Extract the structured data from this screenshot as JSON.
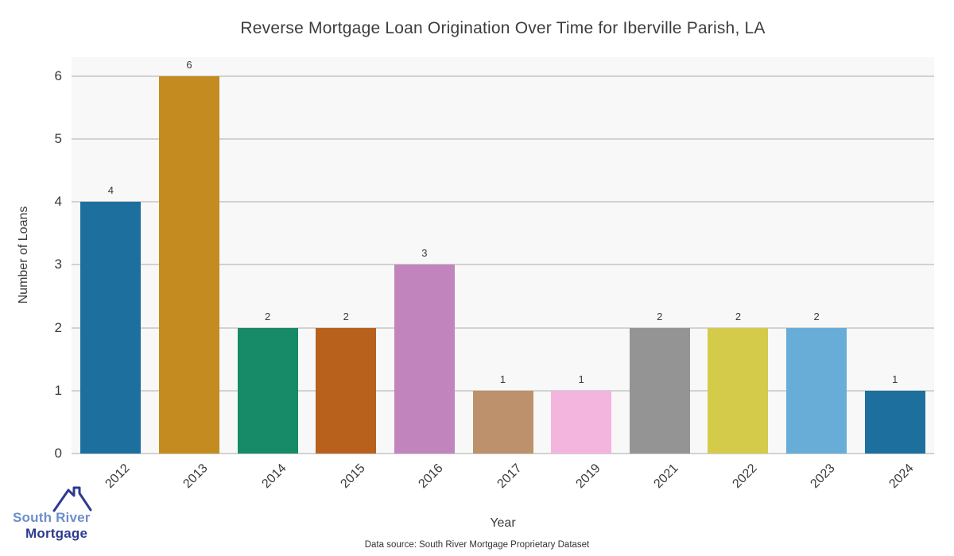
{
  "title": "Reverse Mortgage Loan Origination Over Time for Iberville Parish, LA",
  "chart_data": {
    "type": "bar",
    "categories": [
      "2012",
      "2013",
      "2014",
      "2015",
      "2016",
      "2017",
      "2019",
      "2021",
      "2022",
      "2023",
      "2024"
    ],
    "values": [
      4,
      6,
      2,
      2,
      3,
      1,
      1,
      2,
      2,
      2,
      1
    ],
    "bar_colors": [
      "#1d6f9e",
      "#c38b20",
      "#178a67",
      "#b8611c",
      "#c284bc",
      "#bc916b",
      "#f3b5de",
      "#949494",
      "#d3cb49",
      "#67add8",
      "#1d6f9e"
    ],
    "title": "Reverse Mortgage Loan Origination Over Time for Iberville Parish, LA",
    "xlabel": "Year",
    "ylabel": "Number of Loans",
    "yticks": [
      0,
      1,
      2,
      3,
      4,
      5,
      6
    ],
    "ylim": [
      0,
      6.3
    ],
    "grid": true,
    "legend": false,
    "plot_background": "#f8f8f8",
    "gridline_color": "#d2d2d2",
    "value_labels_shown": true
  },
  "footer": {
    "source_text": "Data source: South River Mortgage Proprietary Dataset"
  },
  "logo": {
    "line1": "South River",
    "line2": "Mortgage",
    "line1_color": "#6e8ec9",
    "line2_color": "#2e3b8e",
    "roof_color": "#2e3b8e",
    "roof_icon": "house-roof-with-chimney"
  }
}
